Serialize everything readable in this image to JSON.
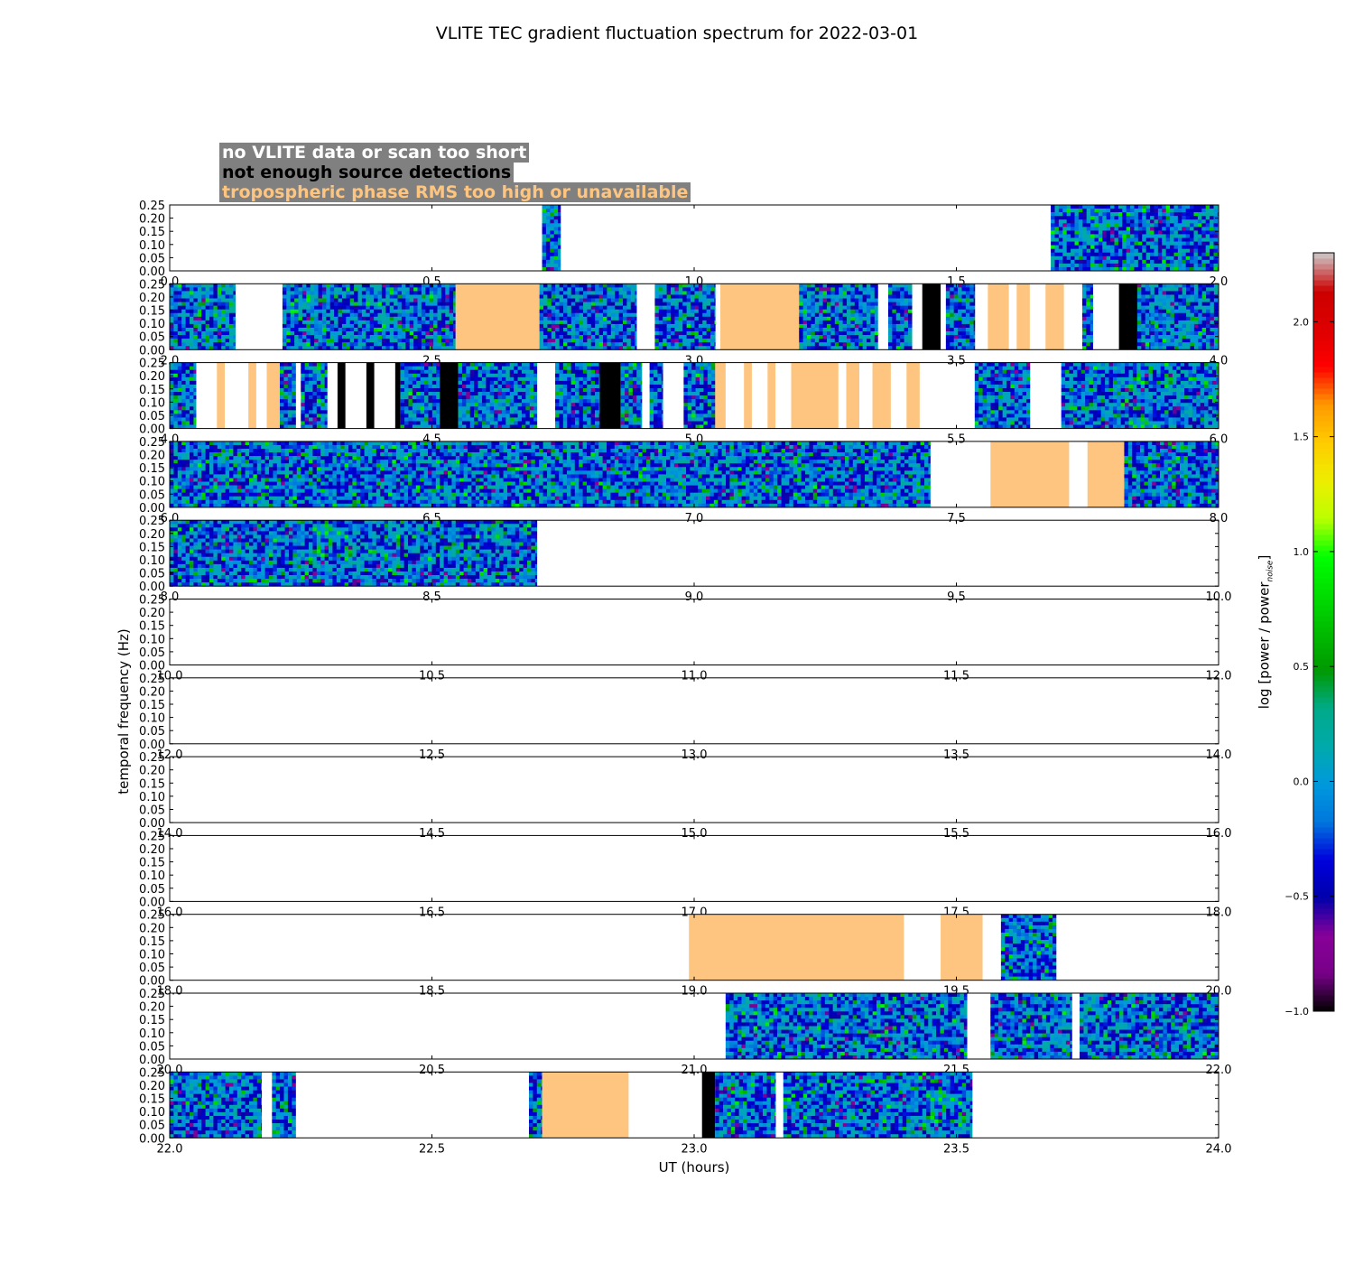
{
  "chart_data": {
    "type": "heatmap",
    "title": "VLITE TEC gradient fluctuation spectrum for 2022-03-01",
    "xlabel": "UT (hours)",
    "ylabel": "temporal frequency (Hz)",
    "ylim": [
      0,
      0.25
    ],
    "yticks": [
      "0.00",
      "0.05",
      "0.10",
      "0.15",
      "0.20",
      "0.25"
    ],
    "colorbar": {
      "label": "log [power / power",
      "label_sub": "noise",
      "label_close": "]",
      "range": [
        -1.0,
        2.3
      ],
      "ticks": [
        "−1.0",
        "−0.5",
        "0.0",
        "0.5",
        "1.0",
        "1.5",
        "2.0"
      ],
      "tick_values": [
        -1.0,
        -0.5,
        0.0,
        0.5,
        1.0,
        1.5,
        2.0
      ],
      "colormap": "nipy_spectral"
    },
    "legend": [
      {
        "label": "no VLITE data or scan too short",
        "color": "#ffffff"
      },
      {
        "label": "not enough source detections",
        "color": "#000000"
      },
      {
        "label": "tropospheric phase RMS too high or unavailable",
        "color": "#fdc57f"
      }
    ],
    "panels": [
      {
        "xlim": [
          0.0,
          2.0
        ],
        "ticks": [
          "0.0",
          "0.5",
          "1.0",
          "1.5",
          "2.0"
        ],
        "segments": [
          [
            0.71,
            0.745,
            "data"
          ],
          [
            1.68,
            2.0,
            "data"
          ]
        ]
      },
      {
        "xlim": [
          2.0,
          4.0
        ],
        "ticks": [
          "2.0",
          "2.5",
          "3.0",
          "3.5",
          "4.0"
        ],
        "segments": [
          [
            2.0,
            2.125,
            "data"
          ],
          [
            2.215,
            2.545,
            "data"
          ],
          [
            2.545,
            2.705,
            "trop"
          ],
          [
            2.705,
            2.89,
            "data"
          ],
          [
            2.925,
            3.04,
            "data"
          ],
          [
            3.05,
            3.2,
            "trop"
          ],
          [
            3.2,
            3.35,
            "data"
          ],
          [
            3.37,
            3.415,
            "data"
          ],
          [
            3.435,
            3.47,
            "nodet"
          ],
          [
            3.48,
            3.535,
            "data"
          ],
          [
            3.56,
            3.6,
            "trop"
          ],
          [
            3.615,
            3.64,
            "trop"
          ],
          [
            3.67,
            3.705,
            "trop"
          ],
          [
            3.74,
            3.76,
            "data"
          ],
          [
            3.81,
            3.845,
            "nodet"
          ],
          [
            3.845,
            3.87,
            "data"
          ],
          [
            3.87,
            4.0,
            "data"
          ]
        ]
      },
      {
        "xlim": [
          4.0,
          6.0
        ],
        "ticks": [
          "4.0",
          "4.5",
          "5.0",
          "5.5",
          "6.0"
        ],
        "segments": [
          [
            4.0,
            4.05,
            "data"
          ],
          [
            4.09,
            4.105,
            "trop"
          ],
          [
            4.15,
            4.165,
            "trop"
          ],
          [
            4.185,
            4.21,
            "trop"
          ],
          [
            4.21,
            4.24,
            "data"
          ],
          [
            4.25,
            4.3,
            "data"
          ],
          [
            4.32,
            4.335,
            "nodet"
          ],
          [
            4.375,
            4.39,
            "nodet"
          ],
          [
            4.43,
            4.44,
            "nodet"
          ],
          [
            4.44,
            4.515,
            "data"
          ],
          [
            4.515,
            4.55,
            "nodet"
          ],
          [
            4.55,
            4.7,
            "data"
          ],
          [
            4.735,
            4.82,
            "data"
          ],
          [
            4.82,
            4.86,
            "nodet"
          ],
          [
            4.86,
            4.9,
            "data"
          ],
          [
            4.915,
            4.94,
            "data"
          ],
          [
            4.98,
            5.04,
            "data"
          ],
          [
            5.04,
            5.06,
            "trop"
          ],
          [
            5.095,
            5.11,
            "trop"
          ],
          [
            5.14,
            5.155,
            "trop"
          ],
          [
            5.185,
            5.275,
            "trop"
          ],
          [
            5.29,
            5.315,
            "trop"
          ],
          [
            5.34,
            5.375,
            "trop"
          ],
          [
            5.405,
            5.43,
            "trop"
          ],
          [
            5.535,
            5.64,
            "data"
          ],
          [
            5.7,
            6.0,
            "data"
          ]
        ]
      },
      {
        "xlim": [
          6.0,
          8.0
        ],
        "ticks": [
          "6.0",
          "6.5",
          "7.0",
          "7.5",
          "8.0"
        ],
        "segments": [
          [
            6.0,
            7.45,
            "data"
          ],
          [
            7.565,
            7.715,
            "trop"
          ],
          [
            7.75,
            7.82,
            "trop"
          ],
          [
            7.82,
            8.0,
            "data"
          ]
        ]
      },
      {
        "xlim": [
          8.0,
          10.0
        ],
        "ticks": [
          "8.0",
          "8.5",
          "9.0",
          "9.5",
          "10.0"
        ],
        "segments": [
          [
            8.0,
            8.7,
            "data"
          ]
        ]
      },
      {
        "xlim": [
          10.0,
          12.0
        ],
        "ticks": [
          "10.0",
          "10.5",
          "11.0",
          "11.5",
          "12.0"
        ],
        "segments": []
      },
      {
        "xlim": [
          12.0,
          14.0
        ],
        "ticks": [
          "12.0",
          "12.5",
          "13.0",
          "13.5",
          "14.0"
        ],
        "segments": []
      },
      {
        "xlim": [
          14.0,
          16.0
        ],
        "ticks": [
          "14.0",
          "14.5",
          "15.0",
          "15.5",
          "16.0"
        ],
        "segments": []
      },
      {
        "xlim": [
          16.0,
          18.0
        ],
        "ticks": [
          "16.0",
          "16.5",
          "17.0",
          "17.5",
          "18.0"
        ],
        "segments": []
      },
      {
        "xlim": [
          18.0,
          20.0
        ],
        "ticks": [
          "18.0",
          "18.5",
          "19.0",
          "19.5",
          "20.0"
        ],
        "segments": [
          [
            18.99,
            19.4,
            "trop"
          ],
          [
            19.47,
            19.55,
            "trop"
          ],
          [
            19.585,
            19.69,
            "data"
          ]
        ]
      },
      {
        "xlim": [
          20.0,
          22.0
        ],
        "ticks": [
          "20.0",
          "20.5",
          "21.0",
          "21.5",
          "22.0"
        ],
        "segments": [
          [
            21.06,
            21.52,
            "data"
          ],
          [
            21.565,
            21.72,
            "data"
          ],
          [
            21.735,
            22.0,
            "data"
          ]
        ]
      },
      {
        "xlim": [
          22.0,
          24.0
        ],
        "ticks": [
          "22.0",
          "22.5",
          "23.0",
          "23.5",
          "24.0"
        ],
        "segments": [
          [
            22.0,
            22.175,
            "data"
          ],
          [
            22.195,
            22.24,
            "data"
          ],
          [
            22.685,
            22.71,
            "data"
          ],
          [
            22.71,
            22.875,
            "trop"
          ],
          [
            23.015,
            23.04,
            "nodet"
          ],
          [
            23.04,
            23.155,
            "data"
          ],
          [
            23.17,
            23.53,
            "data"
          ]
        ]
      }
    ]
  }
}
